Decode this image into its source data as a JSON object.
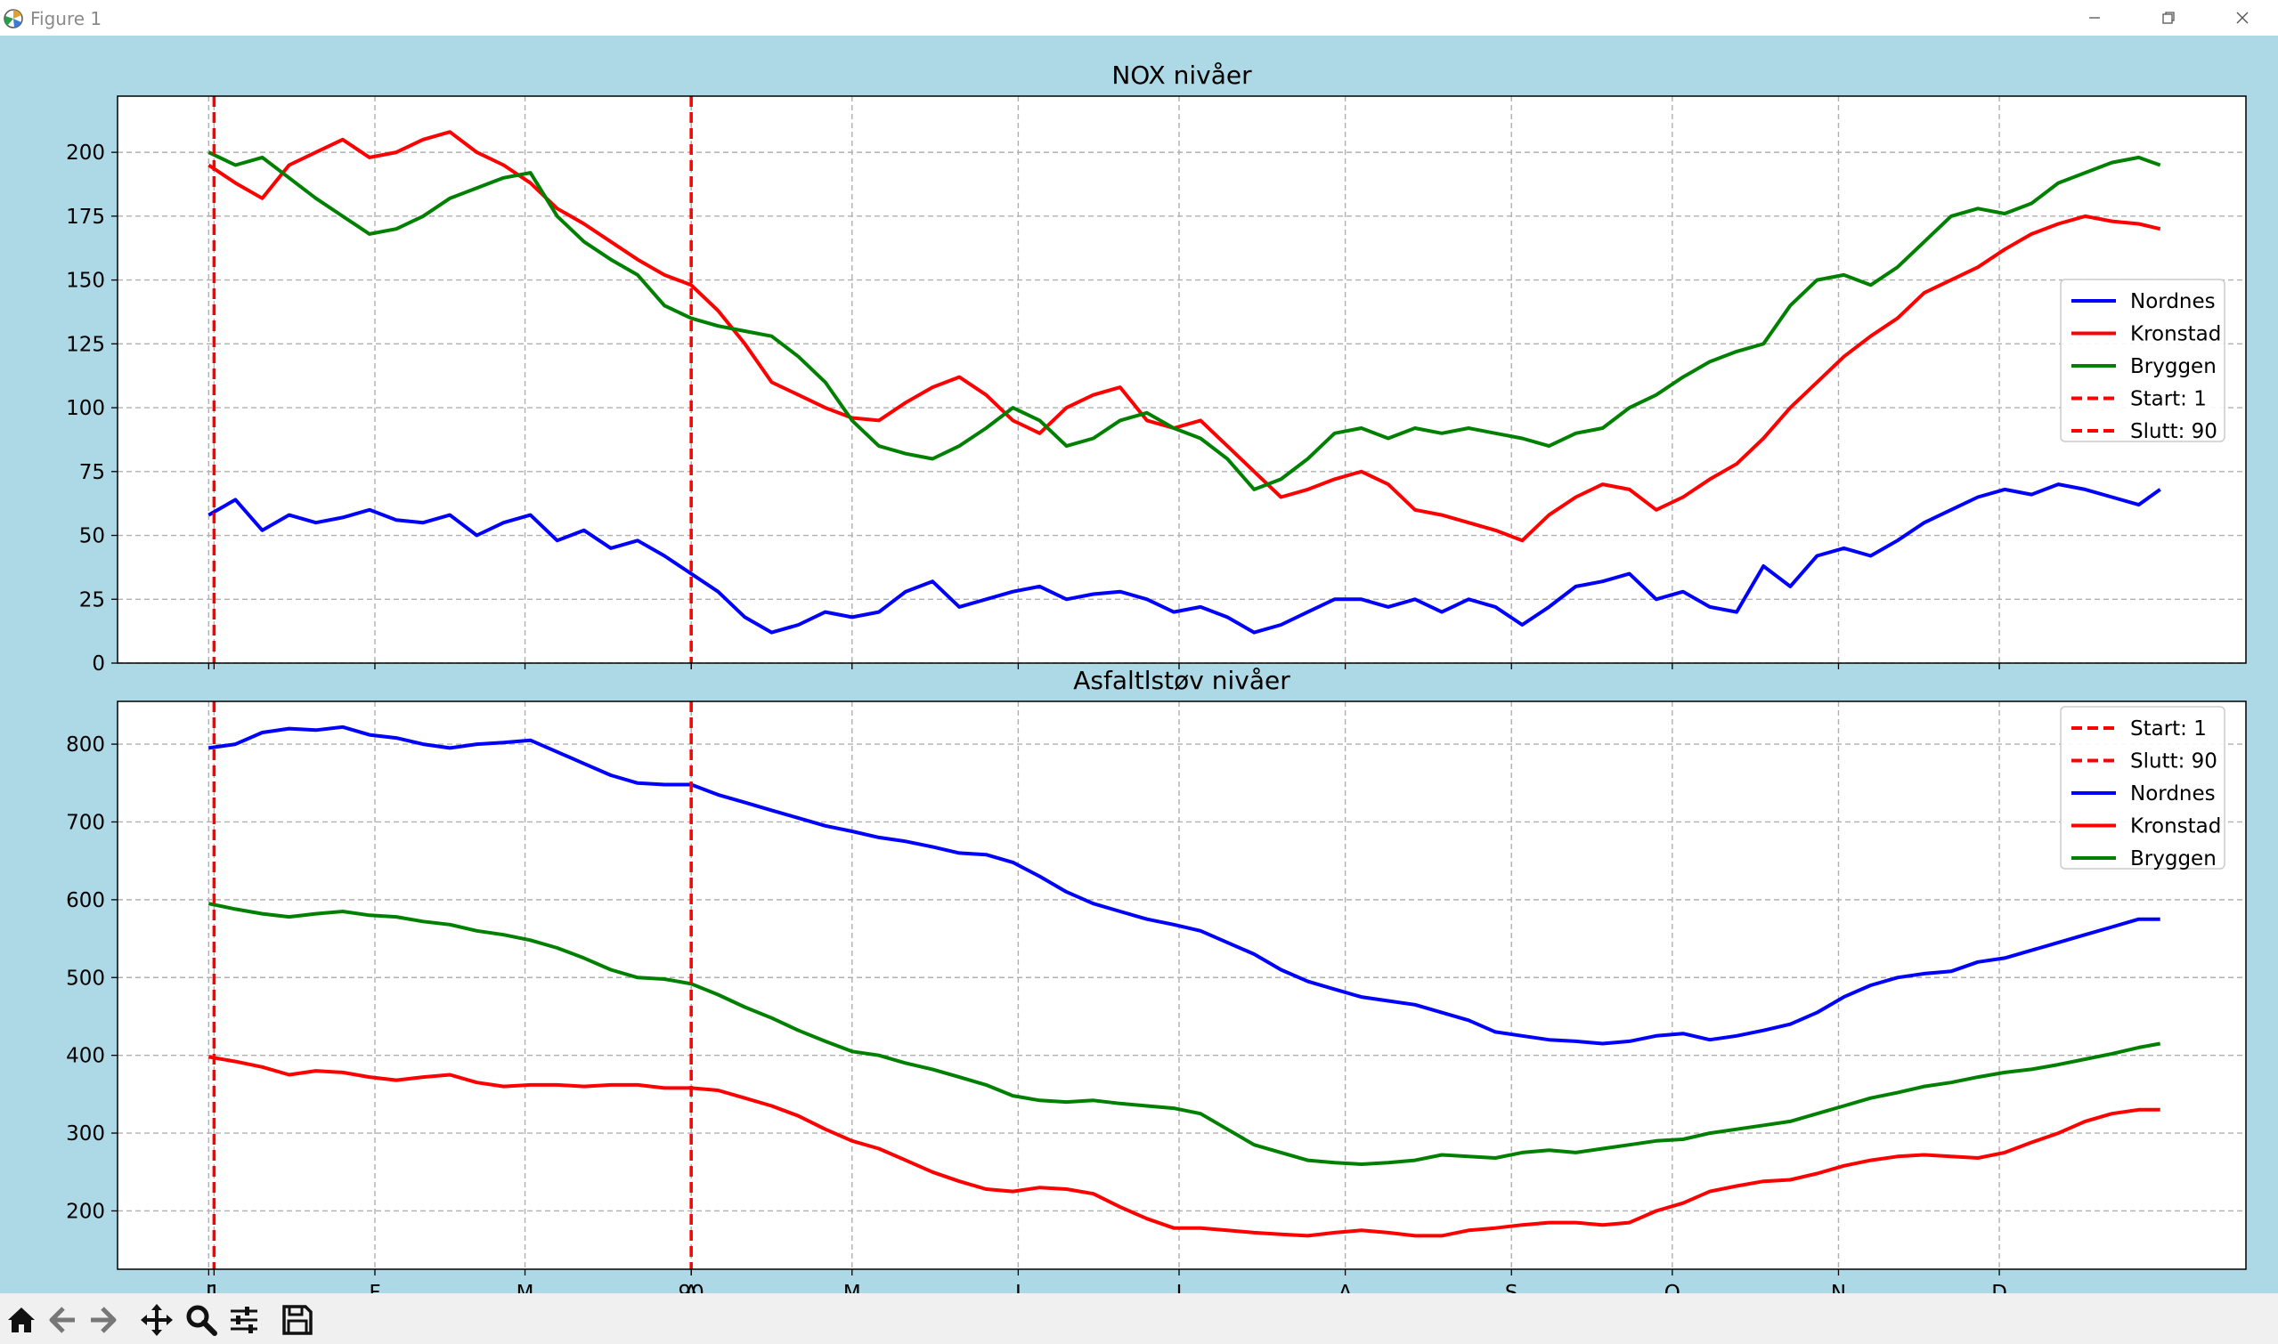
{
  "window": {
    "title": "Figure 1"
  },
  "colors": {
    "figure_bg": "#add8e6",
    "axes_bg": "#ffffff",
    "Nordnes": "#0000ff",
    "Kronstad": "#ff0000",
    "Bryggen": "#008000",
    "vline": "#ff0000",
    "grid": "#b0b0b0"
  },
  "toolbar": {
    "buttons": [
      "home-icon",
      "back-arrow-icon",
      "forward-arrow-icon",
      "pan-icon",
      "zoom-icon",
      "configure-subplots-icon",
      "save-icon"
    ]
  },
  "chart_data": [
    {
      "type": "line",
      "title": "NOX nivåer",
      "xlabel": "",
      "ylabel": "",
      "xlim": [
        -17,
        380
      ],
      "ylim": [
        0,
        222
      ],
      "yticks": [
        0,
        25,
        50,
        75,
        100,
        125,
        150,
        175,
        200
      ],
      "xticks": [
        {
          "label": "J",
          "day": 0
        },
        {
          "label": "1",
          "day": 1
        },
        {
          "label": "F",
          "day": 31
        },
        {
          "label": "M",
          "day": 59
        },
        {
          "label": "A",
          "day": 90
        },
        {
          "label": "90",
          "day": 90
        },
        {
          "label": "M",
          "day": 120
        },
        {
          "label": "J",
          "day": 151
        },
        {
          "label": "J",
          "day": 181
        },
        {
          "label": "A",
          "day": 212
        },
        {
          "label": "S",
          "day": 243
        },
        {
          "label": "O",
          "day": 273
        },
        {
          "label": "N",
          "day": 304
        },
        {
          "label": "D",
          "day": 334
        }
      ],
      "grid": true,
      "vlines": [
        {
          "name": "Start: 1",
          "x": 1
        },
        {
          "name": "Slutt: 90",
          "x": 90
        }
      ],
      "legend": {
        "placement": "right",
        "entries": [
          "Nordnes",
          "Kronstad",
          "Bryggen",
          "Start: 1",
          "Slutt: 90"
        ]
      },
      "x": [
        0,
        5,
        10,
        15,
        20,
        25,
        30,
        35,
        40,
        45,
        50,
        55,
        60,
        65,
        70,
        75,
        80,
        85,
        90,
        95,
        100,
        105,
        110,
        115,
        120,
        125,
        130,
        135,
        140,
        145,
        150,
        155,
        160,
        165,
        170,
        175,
        180,
        185,
        190,
        195,
        200,
        205,
        210,
        215,
        220,
        225,
        230,
        235,
        240,
        245,
        250,
        255,
        260,
        265,
        270,
        275,
        280,
        285,
        290,
        295,
        300,
        305,
        310,
        315,
        320,
        325,
        330,
        335,
        340,
        345,
        350,
        355,
        360,
        364
      ],
      "series": [
        {
          "name": "Nordnes",
          "values": [
            58,
            64,
            52,
            58,
            55,
            57,
            60,
            56,
            55,
            58,
            50,
            55,
            58,
            48,
            52,
            45,
            48,
            42,
            35,
            28,
            18,
            12,
            15,
            20,
            18,
            20,
            28,
            32,
            22,
            25,
            28,
            30,
            25,
            27,
            28,
            25,
            20,
            22,
            18,
            12,
            15,
            20,
            25,
            25,
            22,
            25,
            20,
            25,
            22,
            15,
            22,
            30,
            32,
            35,
            25,
            28,
            22,
            20,
            38,
            30,
            42,
            45,
            42,
            48,
            55,
            60,
            65,
            68,
            66,
            70,
            68,
            65,
            62,
            68
          ]
        },
        {
          "name": "Kronstad",
          "values": [
            195,
            188,
            182,
            195,
            200,
            205,
            198,
            200,
            205,
            208,
            200,
            195,
            188,
            178,
            172,
            165,
            158,
            152,
            148,
            138,
            125,
            110,
            105,
            100,
            96,
            95,
            102,
            108,
            112,
            105,
            95,
            90,
            100,
            105,
            108,
            95,
            92,
            95,
            85,
            75,
            65,
            68,
            72,
            75,
            70,
            60,
            58,
            55,
            52,
            48,
            58,
            65,
            70,
            68,
            60,
            65,
            72,
            78,
            88,
            100,
            110,
            120,
            128,
            135,
            145,
            150,
            155,
            162,
            168,
            172,
            175,
            173,
            172,
            170
          ]
        },
        {
          "name": "Bryggen",
          "values": [
            200,
            195,
            198,
            190,
            182,
            175,
            168,
            170,
            175,
            182,
            186,
            190,
            192,
            175,
            165,
            158,
            152,
            140,
            135,
            132,
            130,
            128,
            120,
            110,
            95,
            85,
            82,
            80,
            85,
            92,
            100,
            95,
            85,
            88,
            95,
            98,
            92,
            88,
            80,
            68,
            72,
            80,
            90,
            92,
            88,
            92,
            90,
            92,
            90,
            88,
            85,
            90,
            92,
            100,
            105,
            112,
            118,
            122,
            125,
            140,
            150,
            152,
            148,
            155,
            165,
            175,
            178,
            176,
            180,
            188,
            192,
            196,
            198,
            195
          ]
        }
      ]
    },
    {
      "type": "line",
      "title": "Asfaltlstøv nivåer",
      "xlabel": "",
      "ylabel": "",
      "xlim": [
        -17,
        380
      ],
      "ylim": [
        125,
        855
      ],
      "yticks": [
        200,
        300,
        400,
        500,
        600,
        700,
        800
      ],
      "xticks": [
        {
          "label": "J",
          "day": 0
        },
        {
          "label": "1",
          "day": 1
        },
        {
          "label": "F",
          "day": 31
        },
        {
          "label": "M",
          "day": 59
        },
        {
          "label": "A",
          "day": 90
        },
        {
          "label": "90",
          "day": 90
        },
        {
          "label": "M",
          "day": 120
        },
        {
          "label": "J",
          "day": 151
        },
        {
          "label": "J",
          "day": 181
        },
        {
          "label": "A",
          "day": 212
        },
        {
          "label": "S",
          "day": 243
        },
        {
          "label": "O",
          "day": 273
        },
        {
          "label": "N",
          "day": 304
        },
        {
          "label": "D",
          "day": 334
        }
      ],
      "grid": true,
      "vlines": [
        {
          "name": "Start: 1",
          "x": 1
        },
        {
          "name": "Slutt: 90",
          "x": 90
        }
      ],
      "legend": {
        "placement": "top-right",
        "entries": [
          "Start: 1",
          "Slutt: 90",
          "Nordnes",
          "Kronstad",
          "Bryggen"
        ]
      },
      "x": [
        0,
        5,
        10,
        15,
        20,
        25,
        30,
        35,
        40,
        45,
        50,
        55,
        60,
        65,
        70,
        75,
        80,
        85,
        90,
        95,
        100,
        105,
        110,
        115,
        120,
        125,
        130,
        135,
        140,
        145,
        150,
        155,
        160,
        165,
        170,
        175,
        180,
        185,
        190,
        195,
        200,
        205,
        210,
        215,
        220,
        225,
        230,
        235,
        240,
        245,
        250,
        255,
        260,
        265,
        270,
        275,
        280,
        285,
        290,
        295,
        300,
        305,
        310,
        315,
        320,
        325,
        330,
        335,
        340,
        345,
        350,
        355,
        360,
        364
      ],
      "series": [
        {
          "name": "Nordnes",
          "values": [
            795,
            800,
            815,
            820,
            818,
            822,
            812,
            808,
            800,
            795,
            800,
            802,
            805,
            790,
            775,
            760,
            750,
            748,
            748,
            735,
            725,
            715,
            705,
            695,
            688,
            680,
            675,
            668,
            660,
            658,
            648,
            630,
            610,
            595,
            585,
            575,
            568,
            560,
            545,
            530,
            510,
            495,
            485,
            475,
            470,
            465,
            455,
            445,
            430,
            425,
            420,
            418,
            415,
            418,
            425,
            428,
            420,
            425,
            432,
            440,
            455,
            475,
            490,
            500,
            505,
            508,
            520,
            525,
            535,
            545,
            555,
            565,
            575,
            575
          ]
        },
        {
          "name": "Kronstad",
          "values": [
            398,
            392,
            385,
            375,
            380,
            378,
            372,
            368,
            372,
            375,
            365,
            360,
            362,
            362,
            360,
            362,
            362,
            358,
            358,
            355,
            345,
            335,
            322,
            305,
            290,
            280,
            265,
            250,
            238,
            228,
            225,
            230,
            228,
            222,
            205,
            190,
            178,
            178,
            175,
            172,
            170,
            168,
            172,
            175,
            172,
            168,
            168,
            175,
            178,
            182,
            185,
            185,
            182,
            185,
            200,
            210,
            225,
            232,
            238,
            240,
            248,
            258,
            265,
            270,
            272,
            270,
            268,
            275,
            288,
            300,
            315,
            325,
            330,
            330
          ]
        },
        {
          "name": "Bryggen",
          "values": [
            595,
            588,
            582,
            578,
            582,
            585,
            580,
            578,
            572,
            568,
            560,
            555,
            548,
            538,
            525,
            510,
            500,
            498,
            492,
            478,
            462,
            448,
            432,
            418,
            405,
            400,
            390,
            382,
            372,
            362,
            348,
            342,
            340,
            342,
            338,
            335,
            332,
            325,
            305,
            285,
            275,
            265,
            262,
            260,
            262,
            265,
            272,
            270,
            268,
            275,
            278,
            275,
            280,
            285,
            290,
            292,
            300,
            305,
            310,
            315,
            325,
            335,
            345,
            352,
            360,
            365,
            372,
            378,
            382,
            388,
            395,
            402,
            410,
            415
          ]
        }
      ]
    }
  ]
}
